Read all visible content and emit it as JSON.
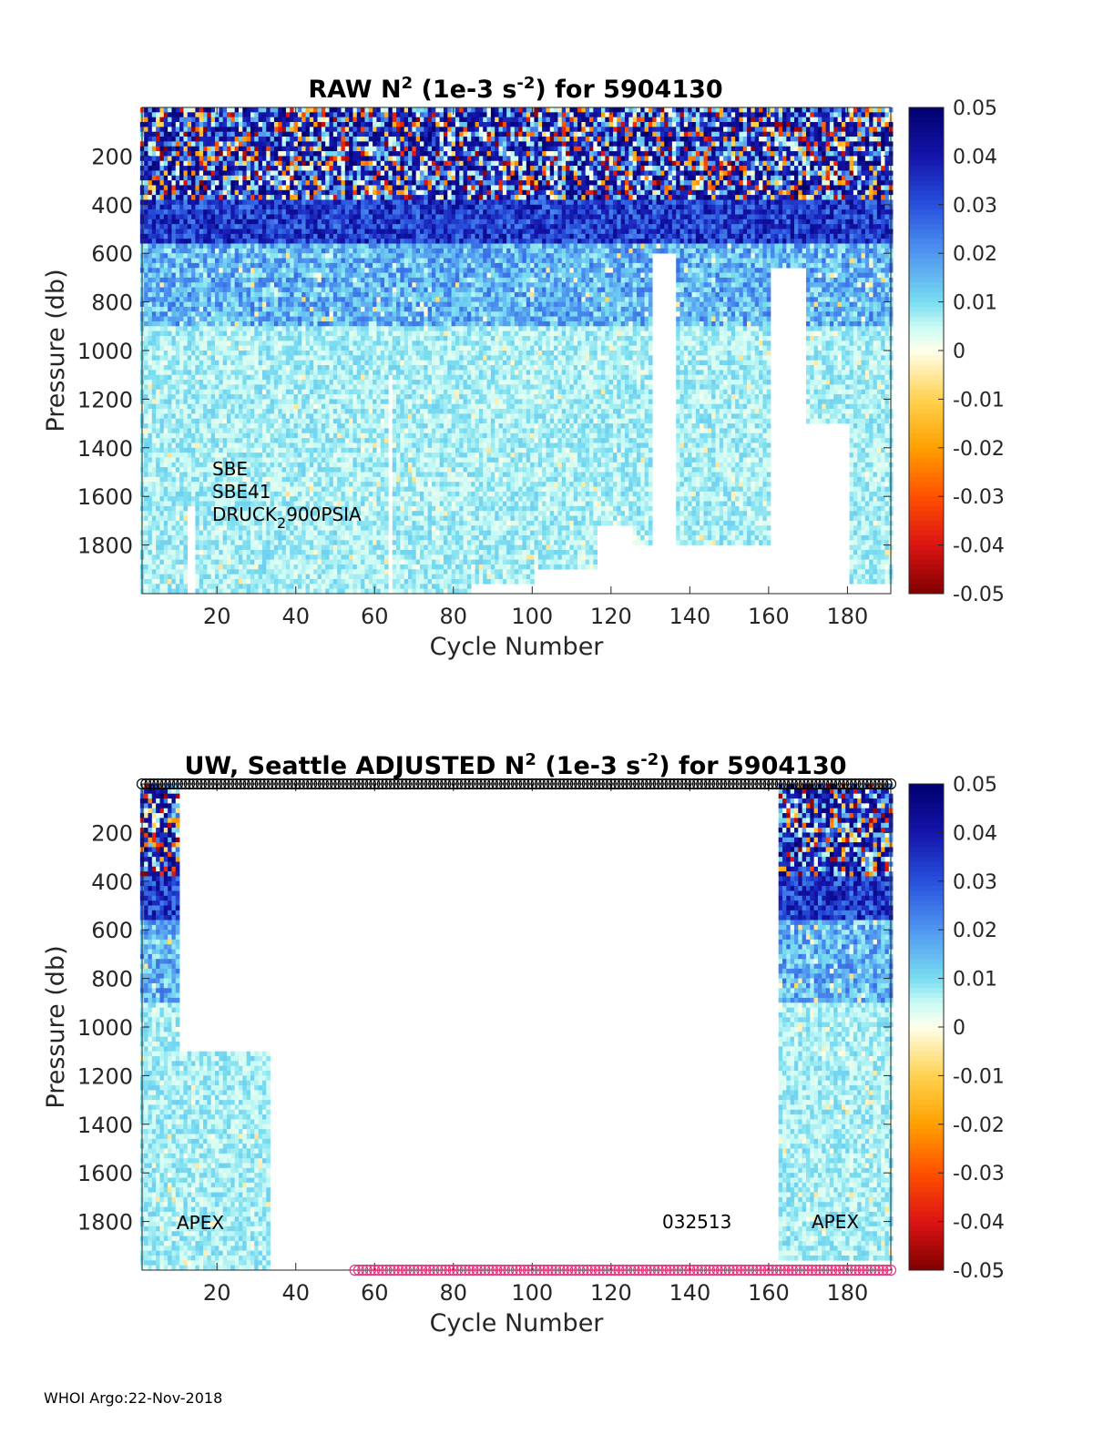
{
  "footer": "WHOI Argo:22-Nov-2018",
  "charts": [
    {
      "title_main": "RAW N",
      "title_sup": "2",
      "title_mid": " (1e-3 s",
      "title_sup2": "-2",
      "title_end": ") for 5904130",
      "annotations": [
        "SBE",
        "SBE41",
        "DRUCK"
      ],
      "druck_sub": "2",
      "druck_tail": "900PSIA"
    },
    {
      "title_main": "UW, Seattle  ADJUSTED N",
      "title_sup": "2",
      "title_mid": " (1e-3 s",
      "title_sup2": "-2",
      "title_end": ") for 5904130",
      "annotations": [
        "APEX",
        "032513",
        "APEX"
      ]
    }
  ],
  "chart_data": [
    {
      "type": "heatmap",
      "title": "RAW N2 (1e-3 s-2) for 5904130",
      "xlabel": "Cycle Number",
      "ylabel": "Pressure (db)",
      "xlim": [
        1,
        191
      ],
      "ylim": [
        0,
        2000
      ],
      "y_reversed": true,
      "xticks": [
        20,
        40,
        60,
        80,
        100,
        120,
        140,
        160,
        180
      ],
      "yticks": [
        200,
        400,
        600,
        800,
        1000,
        1200,
        1400,
        1600,
        1800
      ],
      "colorbar": {
        "min": -0.05,
        "max": 0.05,
        "ticks": [
          "0.05",
          "0.04",
          "0.03",
          "0.02",
          "0.01",
          "0",
          "-0.01",
          "-0.02",
          "-0.03",
          "-0.04",
          "-0.05"
        ]
      },
      "profile_max_depth": [
        {
          "cycles": [
            1,
            12
          ],
          "pressure": 2000
        },
        {
          "cycles": [
            13,
            14
          ],
          "pressure": 1640
        },
        {
          "cycles": [
            15,
            63
          ],
          "pressure": 2000
        },
        {
          "cycles": [
            64,
            64
          ],
          "pressure": 1100
        },
        {
          "cycles": [
            65,
            84
          ],
          "pressure": 2000
        },
        {
          "cycles": [
            85,
            100
          ],
          "pressure": 1950
        },
        {
          "cycles": [
            101,
            116
          ],
          "pressure": 1900
        },
        {
          "cycles": [
            117,
            125
          ],
          "pressure": 1720
        },
        {
          "cycles": [
            126,
            130
          ],
          "pressure": 1800
        },
        {
          "cycles": [
            131,
            136
          ],
          "pressure": 600
        },
        {
          "cycles": [
            137,
            160
          ],
          "pressure": 1800
        },
        {
          "cycles": [
            161,
            169
          ],
          "pressure": 650
        },
        {
          "cycles": [
            170,
            180
          ],
          "pressure": 1300
        },
        {
          "cycles": [
            181,
            191
          ],
          "pressure": 1950
        }
      ],
      "value_summary": [
        {
          "pressure": [
            0,
            380
          ],
          "value": "mixed -0.05 to 0.05, high variance"
        },
        {
          "pressure": [
            380,
            550
          ],
          "value": "~0.03 to 0.045"
        },
        {
          "pressure": [
            550,
            900
          ],
          "value": "~0.01 to 0.025"
        },
        {
          "pressure": [
            900,
            2000
          ],
          "value": "~0.003 to 0.012"
        }
      ]
    },
    {
      "type": "heatmap",
      "title": "UW, Seattle  ADJUSTED N2 (1e-3 s-2) for 5904130",
      "xlabel": "Cycle Number",
      "ylabel": "Pressure (db)",
      "xlim": [
        1,
        191
      ],
      "ylim": [
        0,
        2000
      ],
      "y_reversed": true,
      "xticks": [
        20,
        40,
        60,
        80,
        100,
        120,
        140,
        160,
        180
      ],
      "yticks": [
        200,
        400,
        600,
        800,
        1000,
        1200,
        1400,
        1600,
        1800
      ],
      "colorbar": {
        "min": -0.05,
        "max": 0.05,
        "ticks": [
          "0.05",
          "0.04",
          "0.03",
          "0.02",
          "0.01",
          "0",
          "-0.01",
          "-0.02",
          "-0.03",
          "-0.04",
          "-0.05"
        ]
      },
      "data_blocks": [
        {
          "cycles": [
            1,
            10
          ],
          "pressure": [
            0,
            2000
          ]
        },
        {
          "cycles": [
            11,
            33
          ],
          "pressure": [
            1100,
            2000
          ]
        },
        {
          "cycles": [
            163,
            191
          ],
          "pressure": [
            0,
            1950
          ]
        }
      ],
      "top_markers": {
        "symbol": "o",
        "color": "#000000",
        "cycles": [
          1,
          191
        ],
        "pressure": 0
      },
      "bottom_markers": {
        "symbol": "o",
        "color": "#e0337a",
        "cycles": [
          55,
          191
        ],
        "pressure": 2000
      }
    }
  ]
}
